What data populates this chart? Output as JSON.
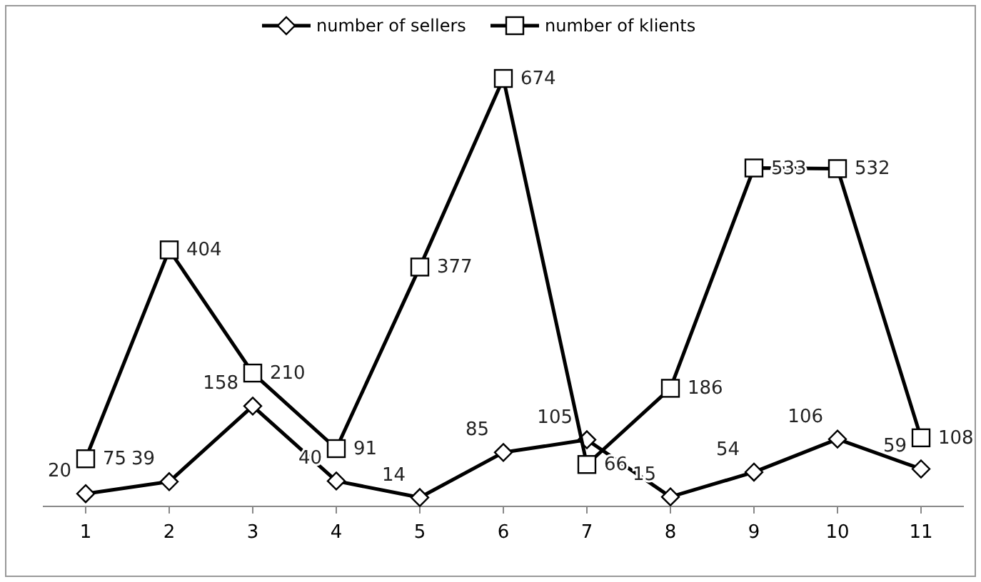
{
  "chart_data": {
    "type": "line",
    "categories": [
      "1",
      "2",
      "3",
      "4",
      "5",
      "6",
      "7",
      "8",
      "9",
      "10",
      "11"
    ],
    "series": [
      {
        "name": "number of sellers",
        "color": "#000000",
        "marker": "diamond",
        "values": [
          20,
          39,
          158,
          40,
          14,
          85,
          105,
          15,
          54,
          106,
          59
        ]
      },
      {
        "name": "number of klients",
        "color": "#000000",
        "marker": "square",
        "values": [
          75,
          404,
          210,
          91,
          377,
          674,
          66,
          186,
          533,
          532,
          108
        ]
      }
    ],
    "data_labels": true,
    "legend": "top",
    "grid": false
  }
}
